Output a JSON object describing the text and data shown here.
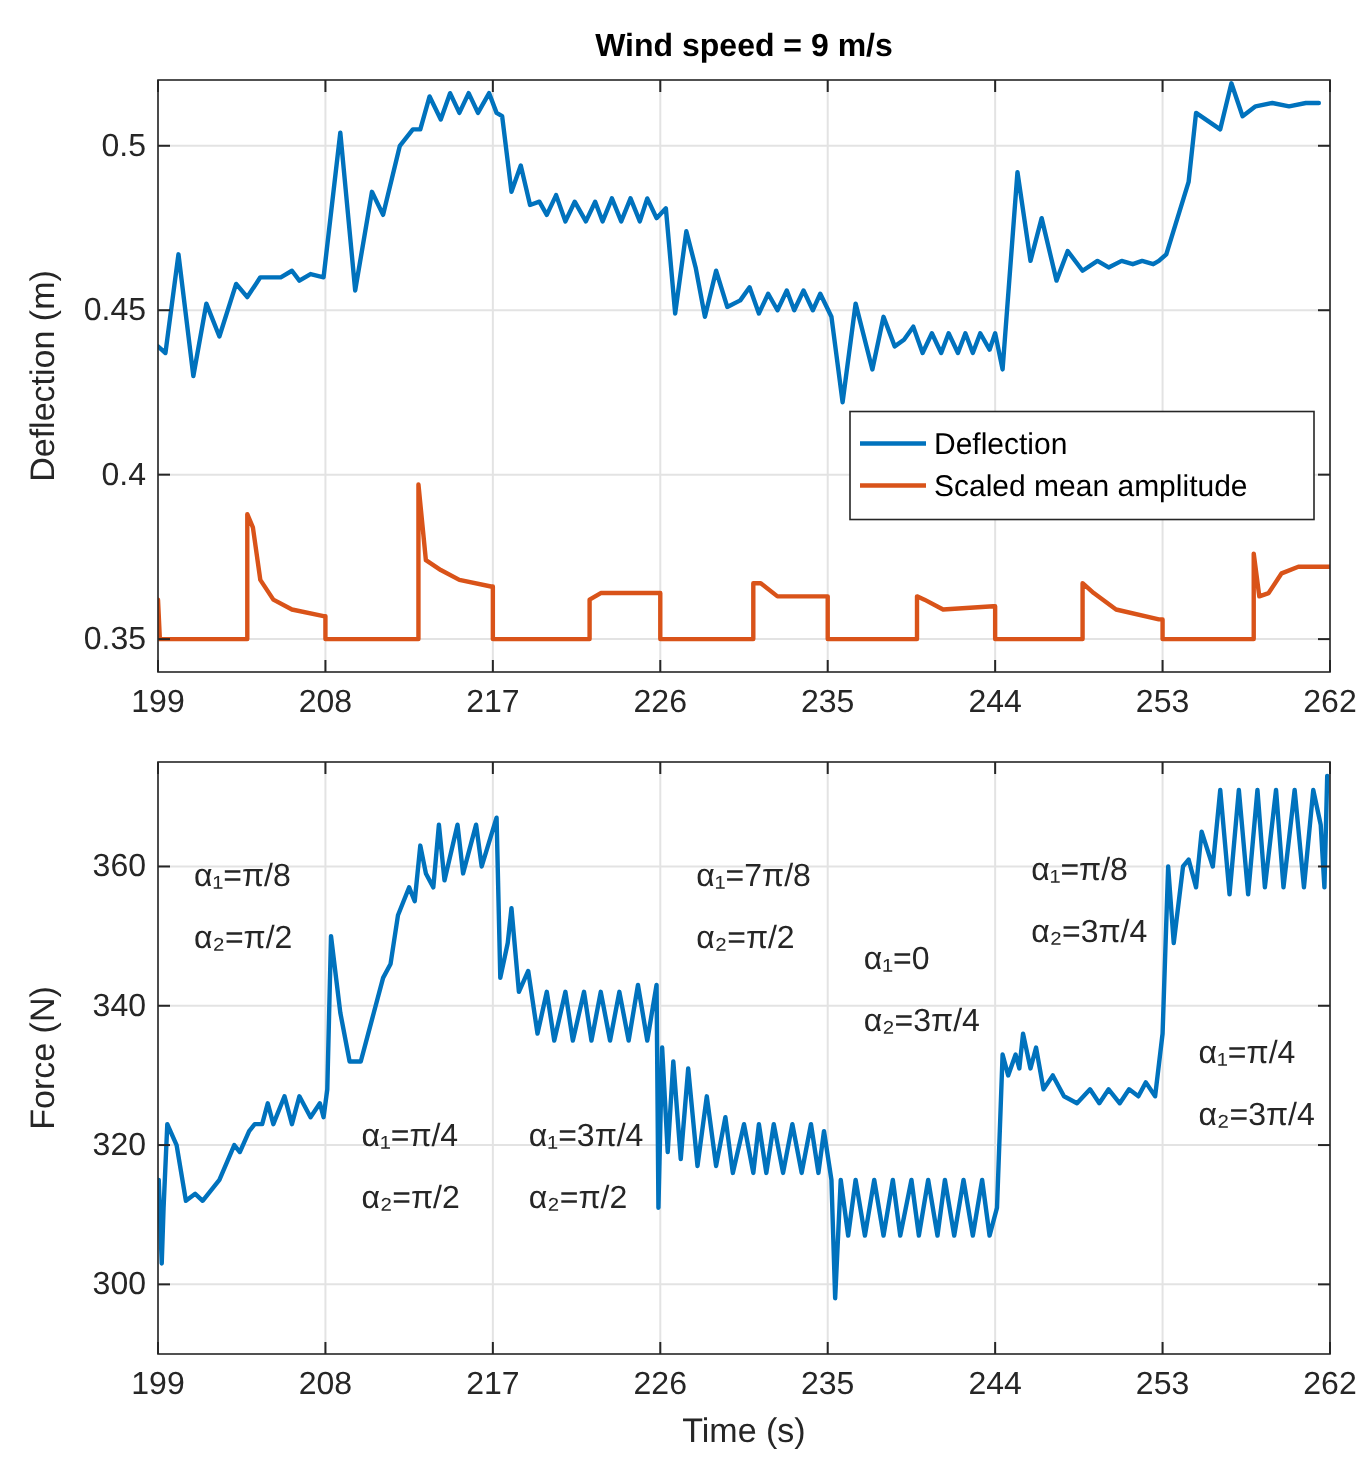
{
  "chart_data": [
    {
      "type": "line",
      "title": "Wind speed = 9 m/s",
      "ylabel": "Deflection (m)",
      "xlim": [
        199,
        262
      ],
      "xticks": [
        199,
        208,
        217,
        226,
        235,
        244,
        253,
        262
      ],
      "ylim": [
        0.34,
        0.52
      ],
      "yticks": [
        0.35,
        0.4,
        0.45,
        0.5
      ],
      "grid": true,
      "legend": "right",
      "line_style": "solid",
      "series": [
        {
          "name": "Deflection",
          "color": "#0072bd",
          "x": [
            199,
            199.4,
            200.1,
            200.9,
            201.6,
            202.3,
            203.2,
            203.8,
            204.5,
            205.6,
            206.2,
            206.6,
            207.2,
            207.9,
            208.8,
            209.6,
            210.5,
            211.1,
            212.0,
            212.7,
            213.1,
            213.6,
            214.2,
            214.7,
            215.2,
            215.7,
            216.2,
            216.8,
            217.2,
            217.5,
            218.0,
            218.5,
            219.0,
            219.5,
            219.9,
            220.4,
            220.9,
            221.4,
            222.0,
            222.5,
            222.9,
            223.4,
            223.9,
            224.4,
            224.9,
            225.3,
            225.8,
            226.3,
            226.8,
            227.4,
            227.9,
            228.4,
            229.0,
            229.6,
            230.3,
            230.8,
            231.3,
            231.8,
            232.3,
            232.8,
            233.2,
            233.7,
            234.2,
            234.6,
            235.2,
            235.8,
            236.5,
            237.4,
            238.0,
            238.6,
            239.1,
            239.6,
            240.1,
            240.6,
            241.1,
            241.5,
            242.0,
            242.4,
            242.8,
            243.2,
            243.7,
            244.0,
            244.4,
            245.2,
            245.9,
            246.5,
            247.3,
            247.9,
            248.7,
            249.5,
            250.1,
            250.8,
            251.4,
            251.9,
            252.5,
            252.8,
            253.2,
            254.4,
            254.8,
            256.1,
            256.7,
            257.3,
            258.0,
            258.9,
            259.8,
            260.7,
            261.4
          ],
          "values": [
            0.439,
            0.437,
            0.467,
            0.43,
            0.452,
            0.442,
            0.458,
            0.454,
            0.46,
            0.46,
            0.462,
            0.459,
            0.461,
            0.46,
            0.504,
            0.456,
            0.486,
            0.479,
            0.5,
            0.505,
            0.505,
            0.515,
            0.508,
            0.516,
            0.51,
            0.516,
            0.51,
            0.516,
            0.51,
            0.509,
            0.486,
            0.494,
            0.482,
            0.483,
            0.479,
            0.485,
            0.477,
            0.483,
            0.477,
            0.483,
            0.477,
            0.484,
            0.477,
            0.484,
            0.477,
            0.484,
            0.478,
            0.481,
            0.449,
            0.474,
            0.463,
            0.448,
            0.462,
            0.451,
            0.453,
            0.457,
            0.449,
            0.455,
            0.45,
            0.456,
            0.45,
            0.456,
            0.45,
            0.455,
            0.448,
            0.422,
            0.452,
            0.432,
            0.448,
            0.439,
            0.441,
            0.445,
            0.437,
            0.443,
            0.437,
            0.443,
            0.437,
            0.443,
            0.437,
            0.443,
            0.438,
            0.443,
            0.432,
            0.492,
            0.465,
            0.478,
            0.459,
            0.468,
            0.462,
            0.465,
            0.463,
            0.465,
            0.464,
            0.465,
            0.464,
            0.465,
            0.467,
            0.489,
            0.51,
            0.505,
            0.519,
            0.509,
            0.512,
            0.513,
            0.512,
            0.513,
            0.513
          ]
        },
        {
          "name": "Scaled mean amplitude",
          "color": "#d95319",
          "x": [
            199,
            199.1,
            203.8,
            203.8,
            204.1,
            204.5,
            205.2,
            206.2,
            207.9,
            208,
            208,
            213,
            213,
            213.4,
            214.2,
            215.2,
            216.9,
            217,
            217,
            222.2,
            222.2,
            222.8,
            226,
            226,
            231,
            231,
            231.4,
            232.3,
            234.9,
            235,
            235,
            239.8,
            239.8,
            240.2,
            241.2,
            243.9,
            244,
            244,
            248.7,
            248.7,
            249.3,
            250.5,
            252.8,
            253,
            253,
            257.9,
            257.9,
            258.2,
            258.7,
            259.4,
            260.3,
            261.7,
            262
          ],
          "values": [
            0.362,
            0.35,
            0.35,
            0.388,
            0.384,
            0.368,
            0.362,
            0.359,
            0.357,
            0.357,
            0.35,
            0.35,
            0.397,
            0.374,
            0.371,
            0.368,
            0.366,
            0.366,
            0.35,
            0.35,
            0.362,
            0.364,
            0.364,
            0.35,
            0.35,
            0.367,
            0.367,
            0.363,
            0.363,
            0.363,
            0.35,
            0.35,
            0.363,
            0.362,
            0.359,
            0.36,
            0.36,
            0.35,
            0.35,
            0.367,
            0.364,
            0.359,
            0.356,
            0.356,
            0.35,
            0.35,
            0.376,
            0.363,
            0.364,
            0.37,
            0.372,
            0.372,
            0.372
          ]
        }
      ]
    },
    {
      "type": "line",
      "xlabel": "Time (s)",
      "ylabel": "Force (N)",
      "xlim": [
        199,
        262
      ],
      "xticks": [
        199,
        208,
        217,
        226,
        235,
        244,
        253,
        262
      ],
      "ylim": [
        290,
        375
      ],
      "yticks": [
        300,
        320,
        340,
        360
      ],
      "grid": true,
      "line_style": "solid",
      "series": [
        {
          "color": "#0072bd",
          "x": [
            199.04,
            199.2,
            199.3,
            199.5,
            200,
            200.5,
            201,
            201.4,
            202,
            202.3,
            203.1,
            203.4,
            203.9,
            204.2,
            204.6,
            204.9,
            205.2,
            205.8,
            206.2,
            206.6,
            207.2,
            207.7,
            207.9,
            208.1,
            208.3,
            208.8,
            209.3,
            209.9,
            210.3,
            210.6,
            211.1,
            211.5,
            211.9,
            212.2,
            212.5,
            212.8,
            213.1,
            213.4,
            213.8,
            214.1,
            214.4,
            215.1,
            215.4,
            216.1,
            216.4,
            217.2,
            217.4,
            217.8,
            218.0,
            218.4,
            218.9,
            219.4,
            219.9,
            220.3,
            220.9,
            221.3,
            221.9,
            222.3,
            222.8,
            223.3,
            223.8,
            224.3,
            224.8,
            225.3,
            225.8,
            225.9,
            226.1,
            226.4,
            226.7,
            227.1,
            227.5,
            228,
            228.5,
            229,
            229.5,
            229.9,
            230.5,
            231,
            231.3,
            231.7,
            232.1,
            232.6,
            233.1,
            233.6,
            234.1,
            234.5,
            234.8,
            235.2,
            235.4,
            235.7,
            236.1,
            236.5,
            237,
            237.5,
            238,
            238.5,
            238.9,
            239.5,
            239.9,
            240.4,
            240.9,
            241.3,
            241.8,
            242.3,
            242.8,
            243.3,
            243.7,
            244.1,
            244.4,
            244.7,
            245.1,
            245.3,
            245.5,
            245.9,
            246.2,
            246.6,
            247.1,
            247.7,
            248.4,
            249.1,
            249.6,
            250.1,
            250.7,
            251.2,
            251.7,
            252.1,
            252.6,
            253.0,
            253.3,
            253.6,
            254.1,
            254.4,
            254.8,
            255.1,
            255.7,
            256.1,
            256.6,
            257.1,
            257.6,
            258.1,
            258.5,
            259.1,
            259.5,
            260.1,
            260.6,
            261.1,
            261.5,
            261.7,
            261.85
          ],
          "values": [
            315,
            303,
            311,
            323,
            320,
            312,
            313,
            312,
            314,
            315,
            320,
            319,
            322,
            323,
            323,
            326,
            323,
            327,
            323,
            327,
            324,
            326,
            324,
            328,
            350,
            339,
            332,
            332,
            336,
            339,
            344,
            346,
            353,
            355,
            357,
            355,
            363,
            359,
            357,
            366,
            358,
            366,
            359,
            366,
            360,
            367,
            344,
            349,
            354,
            342,
            345,
            336,
            342,
            335,
            342,
            335,
            342,
            335,
            342,
            335,
            342,
            335,
            343,
            335,
            343,
            311,
            334,
            319,
            332,
            318,
            331,
            317,
            327,
            317,
            324,
            316,
            323,
            316,
            323,
            316,
            323,
            316,
            323,
            316,
            323,
            316,
            322,
            315,
            298,
            315,
            307,
            315,
            307,
            315,
            307,
            315,
            307,
            315,
            307,
            315,
            307,
            315,
            307,
            315,
            307,
            315,
            307,
            311,
            333,
            330,
            333,
            331,
            336,
            331,
            334,
            328,
            330,
            327,
            326,
            328,
            326,
            328,
            326,
            328,
            327,
            329,
            327,
            336,
            360,
            349,
            360,
            361,
            357,
            365,
            360,
            371,
            356,
            371,
            356,
            371,
            357,
            371,
            357,
            371,
            357,
            371,
            366,
            357,
            373
          ]
        }
      ],
      "annotations": [
        "α₁=π/8\nα₂=π/2",
        "α₁=π/4\nα₂=π/2",
        "α₁=3π/4\nα₂=π/2",
        "α₁=7π/8\nα₂=π/2",
        "α₁=0\nα₂=3π/4",
        "α₁=π/8\nα₂=3π/4",
        "α₁=π/4\nα₂=3π/4"
      ]
    }
  ]
}
